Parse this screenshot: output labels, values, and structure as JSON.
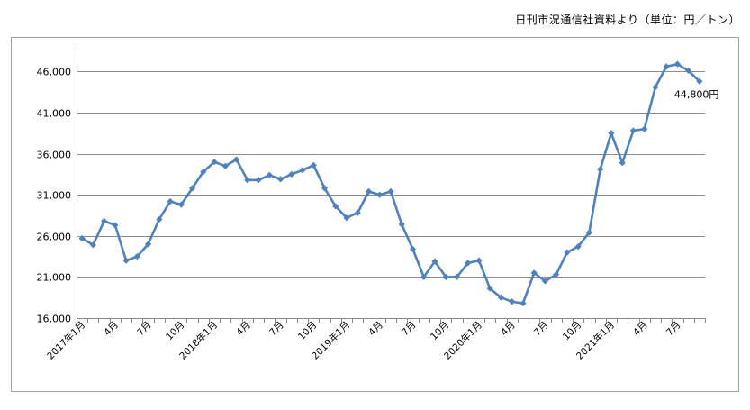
{
  "source_note": "日刊市況通信社資料より（単位：円／トン）",
  "chart_data": {
    "type": "line",
    "title": "",
    "xlabel": "",
    "ylabel": "",
    "ylim": [
      16000,
      49000
    ],
    "yticks": [
      16000,
      21000,
      26000,
      31000,
      36000,
      41000,
      46000
    ],
    "ytick_labels": [
      "16,000",
      "21,000",
      "26,000",
      "31,000",
      "36,000",
      "41,000",
      "46,000"
    ],
    "grid": true,
    "line_color": "#4f81bd",
    "x": [
      "2017年1月",
      "2017年2月",
      "2017年3月",
      "2017年4月",
      "2017年5月",
      "2017年6月",
      "2017年7月",
      "2017年8月",
      "2017年9月",
      "2017年10月",
      "2017年11月",
      "2017年12月",
      "2018年1月",
      "2018年2月",
      "2018年3月",
      "2018年4月",
      "2018年5月",
      "2018年6月",
      "2018年7月",
      "2018年8月",
      "2018年9月",
      "2018年10月",
      "2018年11月",
      "2018年12月",
      "2019年1月",
      "2019年2月",
      "2019年3月",
      "2019年4月",
      "2019年5月",
      "2019年6月",
      "2019年7月",
      "2019年8月",
      "2019年9月",
      "2019年10月",
      "2019年11月",
      "2019年12月",
      "2020年1月",
      "2020年2月",
      "2020年3月",
      "2020年4月",
      "2020年5月",
      "2020年6月",
      "2020年7月",
      "2020年8月",
      "2020年9月",
      "2020年10月",
      "2020年11月",
      "2020年12月",
      "2021年1月",
      "2021年2月",
      "2021年3月",
      "2021年4月",
      "2021年5月",
      "2021年6月",
      "2021年7月",
      "2021年8月",
      "2021年9月"
    ],
    "x_tick_labels": [
      "2017年1月",
      "",
      "",
      "4月",
      "",
      "",
      "7月",
      "",
      "",
      "10月",
      "",
      "",
      "2018年1月",
      "",
      "",
      "4月",
      "",
      "",
      "7月",
      "",
      "",
      "10月",
      "",
      "",
      "2019年1月",
      "",
      "",
      "4月",
      "",
      "",
      "7月",
      "",
      "",
      "10月",
      "",
      "",
      "2020年1月",
      "",
      "",
      "4月",
      "",
      "",
      "7月",
      "",
      "",
      "10月",
      "",
      "",
      "2021年1月",
      "",
      "",
      "4月",
      "",
      "",
      "7月",
      "",
      ""
    ],
    "values": [
      25700,
      24900,
      27800,
      27300,
      23000,
      23500,
      25000,
      28000,
      30200,
      29800,
      31800,
      33800,
      35000,
      34500,
      35300,
      32800,
      32800,
      33400,
      32900,
      33500,
      34000,
      34600,
      31800,
      29600,
      28200,
      28800,
      31400,
      31000,
      31400,
      27400,
      24400,
      21000,
      22900,
      21000,
      21000,
      22700,
      23000,
      19600,
      18500,
      18000,
      17800,
      21500,
      20500,
      21300,
      24000,
      24700,
      26400,
      34100,
      38500,
      34900,
      38800,
      39000,
      44100,
      46600,
      46900,
      46100,
      44800
    ],
    "end_label": "44,800円"
  }
}
